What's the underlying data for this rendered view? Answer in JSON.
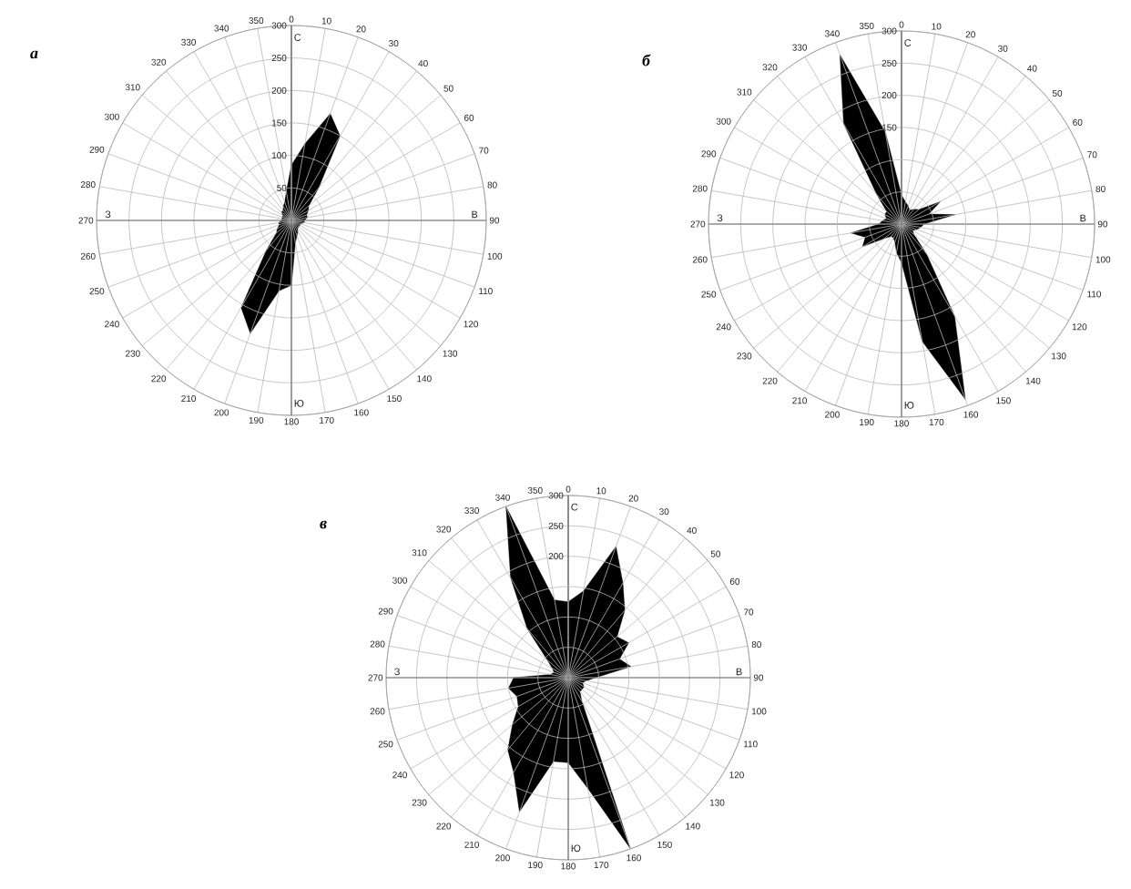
{
  "chart_data": [
    {
      "type": "radar",
      "title": "а",
      "categories": [
        "0",
        "10",
        "20",
        "30",
        "40",
        "50",
        "60",
        "70",
        "80",
        "90",
        "100",
        "110",
        "120",
        "130",
        "140",
        "150",
        "160",
        "170",
        "180",
        "190",
        "200",
        "210",
        "220",
        "230",
        "240",
        "250",
        "260",
        "270",
        "280",
        "290",
        "300",
        "310",
        "320",
        "330",
        "340",
        "350"
      ],
      "values": [
        85,
        120,
        175,
        150,
        65,
        35,
        30,
        25,
        25,
        20,
        20,
        15,
        15,
        15,
        15,
        20,
        25,
        35,
        100,
        110,
        185,
        155,
        60,
        30,
        25,
        20,
        20,
        15,
        15,
        15,
        15,
        20,
        20,
        25,
        30,
        45
      ],
      "color": "#000000",
      "ylim": [
        0,
        300
      ],
      "yticks": [
        50,
        100,
        150,
        200,
        250,
        300
      ],
      "grid": true,
      "annotations": [
        "С",
        "В",
        "Ю",
        "З"
      ]
    },
    {
      "type": "radar",
      "title": "б",
      "categories": [
        "0",
        "10",
        "20",
        "30",
        "40",
        "50",
        "60",
        "70",
        "80",
        "90",
        "100",
        "110",
        "120",
        "130",
        "140",
        "150",
        "160",
        "170",
        "180",
        "190",
        "200",
        "210",
        "220",
        "230",
        "240",
        "250",
        "260",
        "270",
        "280",
        "290",
        "300",
        "310",
        "320",
        "330",
        "340",
        "350"
      ],
      "values": [
        45,
        35,
        30,
        25,
        30,
        35,
        70,
        45,
        85,
        35,
        30,
        25,
        20,
        25,
        60,
        165,
        290,
        185,
        60,
        45,
        30,
        25,
        25,
        35,
        70,
        60,
        80,
        35,
        30,
        25,
        30,
        30,
        60,
        180,
        280,
        145
      ],
      "color": "#000000",
      "ylim": [
        0,
        300
      ],
      "yticks": [
        150,
        200,
        250,
        300
      ],
      "grid": true,
      "annotations": [
        "С",
        "В",
        "Ю",
        "З"
      ]
    },
    {
      "type": "radar",
      "title": "в",
      "categories": [
        "0",
        "10",
        "20",
        "30",
        "40",
        "50",
        "60",
        "70",
        "80",
        "90",
        "100",
        "110",
        "120",
        "130",
        "140",
        "150",
        "160",
        "170",
        "180",
        "190",
        "200",
        "210",
        "220",
        "230",
        "240",
        "250",
        "260",
        "270",
        "280",
        "290",
        "300",
        "310",
        "320",
        "330",
        "340",
        "350"
      ],
      "values": [
        125,
        145,
        230,
        180,
        145,
        105,
        115,
        90,
        105,
        45,
        30,
        25,
        30,
        30,
        30,
        45,
        300,
        185,
        140,
        140,
        235,
        180,
        155,
        120,
        95,
        90,
        100,
        90,
        30,
        25,
        30,
        45,
        105,
        190,
        300,
        130
      ],
      "color": "#000000",
      "ylim": [
        0,
        300
      ],
      "yticks": [
        200,
        250,
        300
      ],
      "grid": true,
      "annotations": [
        "С",
        "В",
        "Ю",
        "З"
      ]
    }
  ]
}
